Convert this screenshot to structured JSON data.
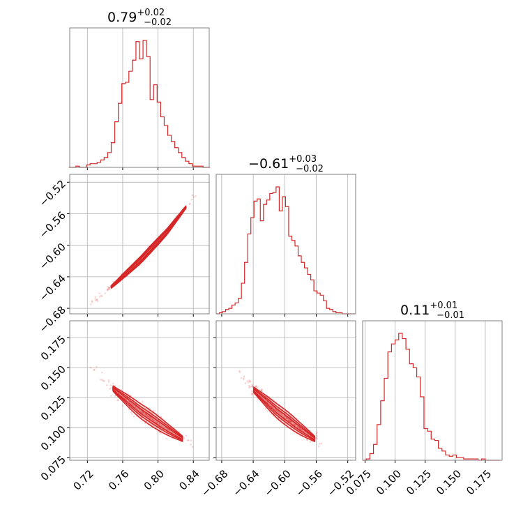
{
  "figure": {
    "color": "#d62728",
    "grid_color": "#b0b0b0",
    "frame_color": "#808080"
  },
  "chart_data": [
    {
      "type": "histogram",
      "panel": "p00",
      "parameter_index": 0,
      "title": {
        "median": "0.79",
        "plus": "+0.02",
        "minus": "−0.02"
      },
      "xlim": [
        0.7,
        0.858
      ],
      "grid": true,
      "bins_x": [
        0.701,
        0.705,
        0.709,
        0.713,
        0.717,
        0.721,
        0.725,
        0.729,
        0.733,
        0.737,
        0.741,
        0.745,
        0.749,
        0.753,
        0.757,
        0.761,
        0.765,
        0.769,
        0.773,
        0.777,
        0.781,
        0.785,
        0.789,
        0.793,
        0.797,
        0.801,
        0.805,
        0.809,
        0.813,
        0.817,
        0.821,
        0.825,
        0.829,
        0.833,
        0.837,
        0.841,
        0.845,
        0.849,
        0.853,
        0.857
      ],
      "counts": [
        0,
        0,
        1,
        0,
        0,
        2,
        3,
        3,
        4,
        6,
        8,
        12,
        20,
        37,
        52,
        68,
        69,
        78,
        87,
        102,
        88,
        103,
        90,
        55,
        67,
        53,
        41,
        34,
        26,
        21,
        16,
        12,
        8,
        5,
        3,
        1,
        1,
        1,
        0,
        0
      ]
    },
    {
      "type": "scatter_contour",
      "panel": "p10",
      "x_param": 0,
      "y_param": 1,
      "xlim": [
        0.7,
        0.858
      ],
      "ylim": [
        -0.687,
        -0.51
      ],
      "grid": true,
      "ridge_x": [
        0.718,
        0.75,
        0.78,
        0.81,
        0.85
      ],
      "ridge_y": [
        -0.679,
        -0.65,
        -0.619,
        -0.583,
        -0.525
      ]
    },
    {
      "type": "histogram",
      "panel": "p11",
      "parameter_index": 1,
      "title": {
        "median": "−0.61",
        "plus": "+0.03",
        "minus": "−0.02"
      },
      "xlim": [
        -0.687,
        -0.51
      ],
      "grid": true,
      "bins_x": [
        -0.685,
        -0.681,
        -0.677,
        -0.673,
        -0.669,
        -0.665,
        -0.661,
        -0.657,
        -0.653,
        -0.649,
        -0.645,
        -0.641,
        -0.637,
        -0.633,
        -0.629,
        -0.625,
        -0.621,
        -0.617,
        -0.613,
        -0.609,
        -0.605,
        -0.601,
        -0.597,
        -0.593,
        -0.589,
        -0.585,
        -0.581,
        -0.577,
        -0.573,
        -0.569,
        -0.565,
        -0.561,
        -0.557,
        -0.553,
        -0.549,
        -0.545,
        -0.541,
        -0.537,
        -0.533,
        -0.529,
        -0.525,
        -0.521,
        -0.517,
        -0.513
      ],
      "counts": [
        0,
        1,
        2,
        4,
        5,
        8,
        10,
        14,
        28,
        47,
        73,
        88,
        103,
        105,
        85,
        100,
        104,
        110,
        111,
        116,
        94,
        107,
        98,
        71,
        67,
        62,
        53,
        47,
        42,
        36,
        31,
        21,
        19,
        17,
        12,
        5,
        4,
        2,
        1,
        1,
        0,
        0,
        0,
        0
      ]
    },
    {
      "type": "scatter_contour",
      "panel": "p20",
      "x_param": 0,
      "y_param": 2,
      "xlim": [
        0.7,
        0.858
      ],
      "ylim": [
        0.073,
        0.189
      ],
      "grid": true,
      "ridge_x": [
        0.722,
        0.75,
        0.78,
        0.81,
        0.845
      ],
      "ridge_y": [
        0.152,
        0.132,
        0.114,
        0.099,
        0.083
      ]
    },
    {
      "type": "scatter_contour",
      "panel": "p21",
      "x_param": 1,
      "y_param": 2,
      "xlim": [
        -0.687,
        -0.51
      ],
      "ylim": [
        0.073,
        0.189
      ],
      "grid": true,
      "ridge_x": [
        -0.666,
        -0.64,
        -0.61,
        -0.58,
        -0.545
      ],
      "ridge_y": [
        0.152,
        0.132,
        0.114,
        0.099,
        0.083
      ]
    },
    {
      "type": "histogram",
      "panel": "p22",
      "parameter_index": 2,
      "title": {
        "median": "0.11",
        "plus": "+0.01",
        "minus": "−0.01"
      },
      "xlim": [
        0.073,
        0.189
      ],
      "grid": true,
      "bins_x": [
        0.0745,
        0.0775,
        0.0805,
        0.0835,
        0.0865,
        0.0895,
        0.0925,
        0.0955,
        0.0985,
        0.1015,
        0.1045,
        0.1075,
        0.1105,
        0.1135,
        0.1165,
        0.1195,
        0.1225,
        0.1255,
        0.1285,
        0.1315,
        0.1345,
        0.1375,
        0.1405,
        0.1435,
        0.1465,
        0.1495,
        0.1525,
        0.1555,
        0.1585,
        0.1615,
        0.1645,
        0.1675,
        0.1705,
        0.1735,
        0.1765,
        0.1795,
        0.1825,
        0.1855
      ],
      "counts": [
        0,
        1,
        5,
        12,
        27,
        45,
        62,
        82,
        88,
        91,
        96,
        92,
        84,
        73,
        70,
        63,
        48,
        24,
        22,
        16,
        15,
        9,
        7,
        4,
        3,
        4,
        2,
        2,
        1,
        1,
        1,
        1,
        0,
        1,
        0,
        0,
        0,
        0
      ]
    }
  ],
  "axes": {
    "x0": {
      "ticks": [
        0.72,
        0.76,
        0.8,
        0.84
      ],
      "labels": [
        "0.72",
        "0.76",
        "0.80",
        "0.84"
      ]
    },
    "x1": {
      "ticks": [
        -0.68,
        -0.64,
        -0.6,
        -0.56,
        -0.52
      ],
      "labels": [
        "−0.68",
        "−0.64",
        "−0.60",
        "−0.56",
        "−0.52"
      ]
    },
    "x2": {
      "ticks": [
        0.075,
        0.1,
        0.125,
        0.15,
        0.175
      ],
      "labels": [
        "0.075",
        "0.100",
        "0.125",
        "0.150",
        "0.175"
      ]
    },
    "y1": {
      "ticks": [
        -0.52,
        -0.56,
        -0.6,
        -0.64,
        -0.68
      ],
      "labels": [
        "−0.52",
        "−0.56",
        "−0.60",
        "−0.64",
        "−0.68"
      ]
    },
    "y2": {
      "ticks": [
        0.175,
        0.15,
        0.125,
        0.1,
        0.075
      ],
      "labels": [
        "0.175",
        "0.150",
        "0.125",
        "0.100",
        "0.075"
      ]
    }
  }
}
